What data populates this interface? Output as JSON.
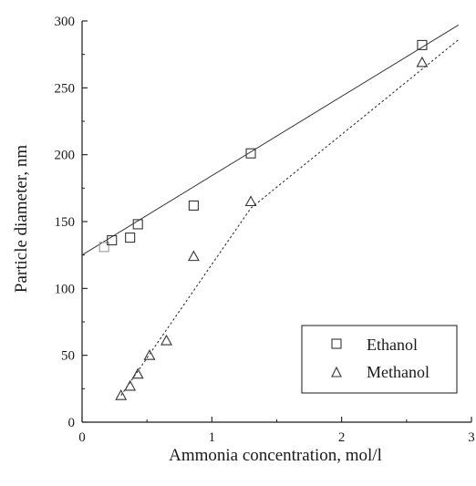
{
  "chart_data": {
    "type": "scatter",
    "xlabel": "Ammonia concentration, mol/l",
    "ylabel": "Particle diameter, nm",
    "xlim": [
      0,
      3
    ],
    "ylim": [
      0,
      300
    ],
    "x_ticks": [
      0,
      1,
      2,
      3
    ],
    "y_ticks": [
      0,
      50,
      100,
      150,
      200,
      250,
      300
    ],
    "grid": false,
    "legend_position": "bottom-right",
    "series": [
      {
        "name": "Ethanol",
        "marker": "square",
        "points": [
          {
            "x": 0.17,
            "y": 131
          },
          {
            "x": 0.23,
            "y": 136
          },
          {
            "x": 0.37,
            "y": 138
          },
          {
            "x": 0.43,
            "y": 148
          },
          {
            "x": 0.86,
            "y": 162
          },
          {
            "x": 1.3,
            "y": 201
          },
          {
            "x": 2.62,
            "y": 282
          }
        ],
        "fit": {
          "style": "solid",
          "segments": [
            [
              0,
              125
            ],
            [
              2.9,
              297
            ]
          ]
        }
      },
      {
        "name": "Methanol",
        "marker": "triangle",
        "points": [
          {
            "x": 0.3,
            "y": 20
          },
          {
            "x": 0.37,
            "y": 27
          },
          {
            "x": 0.43,
            "y": 36
          },
          {
            "x": 0.52,
            "y": 50
          },
          {
            "x": 0.65,
            "y": 61
          },
          {
            "x": 0.86,
            "y": 124
          },
          {
            "x": 1.3,
            "y": 165
          },
          {
            "x": 2.62,
            "y": 269
          }
        ],
        "fit": {
          "style": "dotted",
          "segments": [
            [
              0.3,
              20
            ],
            [
              1.3,
              160
            ],
            [
              2.9,
              286
            ]
          ]
        }
      }
    ]
  },
  "colors": {
    "axis": "#1a1a1a",
    "line": "#333333",
    "marker": "#333333",
    "marker_faded": "#999999"
  }
}
